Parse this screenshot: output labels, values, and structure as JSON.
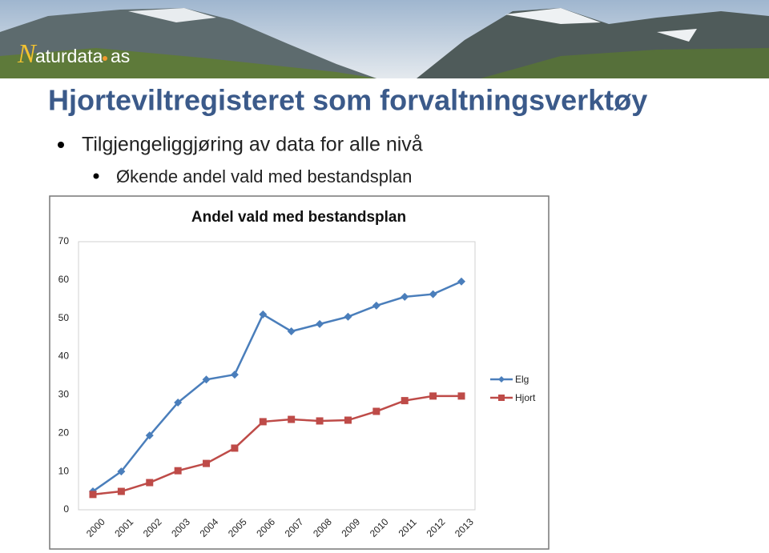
{
  "logo": {
    "name": "aturdata",
    "suffix": "as"
  },
  "slide": {
    "title": "Hjorteviltregisteret som forvaltningsverktøy",
    "bullets": [
      "Tilgjengeliggjøring av data for alle nivå"
    ],
    "sub_bullets": [
      "Økende andel vald med bestandsplan"
    ]
  },
  "chart_data": {
    "type": "line",
    "title": "Andel vald med bestandsplan",
    "categories": [
      "2000",
      "2001",
      "2002",
      "2003",
      "2004",
      "2005",
      "2006",
      "2007",
      "2008",
      "2009",
      "2010",
      "2011",
      "2012",
      "2013"
    ],
    "series": [
      {
        "name": "Elg",
        "color": "#4a7ebb",
        "values": [
          4.8,
          10,
          19.4,
          28,
          34,
          35.3,
          51,
          46.6,
          48.5,
          50.4,
          53.3,
          55.6,
          56.3,
          59.6
        ]
      },
      {
        "name": "Hjort",
        "color": "#be4b48",
        "values": [
          4,
          4.8,
          7.1,
          10.2,
          12.1,
          16.1,
          23,
          23.6,
          23.2,
          23.4,
          25.7,
          28.5,
          29.7,
          29.7
        ]
      }
    ],
    "ylim": [
      0,
      70
    ],
    "yticks": [
      0,
      10,
      20,
      30,
      40,
      50,
      60,
      70
    ],
    "grid": false,
    "legend": "right"
  }
}
